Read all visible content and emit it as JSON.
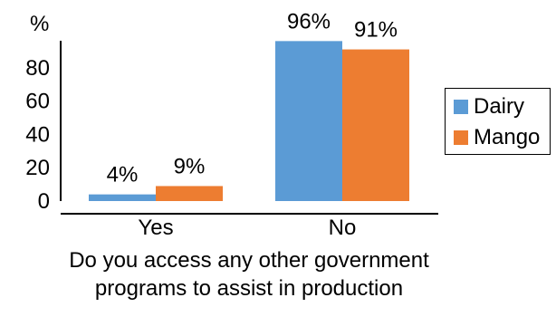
{
  "chart_data": {
    "type": "bar",
    "ylabel": "%",
    "xlabel": "Do you access any other government programs to assist in production",
    "categories": [
      "Yes",
      "No"
    ],
    "series": [
      {
        "name": "Dairy",
        "color": "#5B9BD5",
        "values": [
          4,
          96
        ],
        "labels": [
          "4%",
          "96%"
        ]
      },
      {
        "name": "Mango",
        "color": "#ED7D31",
        "values": [
          9,
          91
        ],
        "labels": [
          "9%",
          "91%"
        ]
      }
    ],
    "ylim": [
      0,
      100
    ],
    "yticks": [
      0,
      20,
      40,
      60,
      80
    ],
    "grid": false,
    "legend_position": "right"
  }
}
